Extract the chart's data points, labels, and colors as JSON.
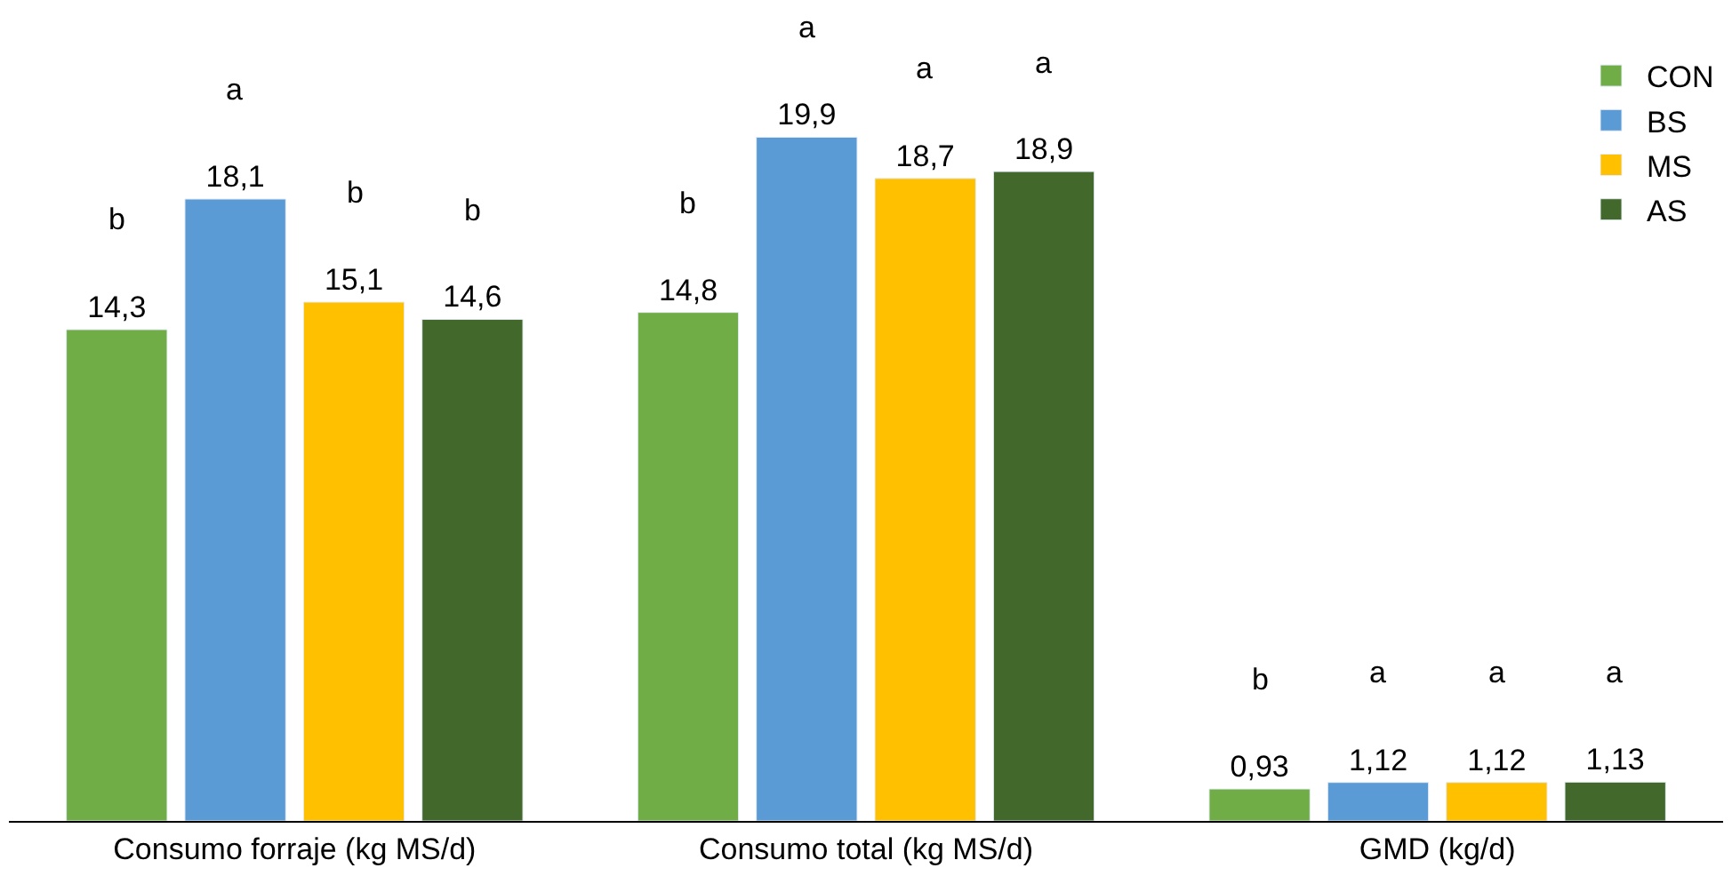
{
  "chart_data": {
    "type": "bar",
    "categories": [
      "Consumo forraje (kg MS/d)",
      "Consumo total (kg MS/d)",
      "GMD (kg/d)"
    ],
    "series": [
      {
        "name": "CON",
        "color": "#70ad47",
        "values": [
          14.3,
          14.8,
          0.93
        ],
        "value_labels": [
          "14,3",
          "14,8",
          "0,93"
        ]
      },
      {
        "name": "BS",
        "color": "#5b9bd5",
        "values": [
          18.1,
          19.9,
          1.12
        ],
        "value_labels": [
          "18,1",
          "19,9",
          "1,12"
        ]
      },
      {
        "name": "MS",
        "color": "#ffc000",
        "values": [
          15.1,
          18.7,
          1.12
        ],
        "value_labels": [
          "15,1",
          "18,7",
          "1,12"
        ]
      },
      {
        "name": "AS",
        "color": "#43682b",
        "values": [
          14.6,
          18.9,
          1.13
        ],
        "value_labels": [
          "14,6",
          "18,9",
          "1,13"
        ]
      }
    ],
    "annotations": [
      "b",
      "a",
      "b",
      "b",
      "b",
      "a",
      "a",
      "a",
      "b",
      "a",
      "a",
      "a"
    ],
    "legend": "top right"
  }
}
